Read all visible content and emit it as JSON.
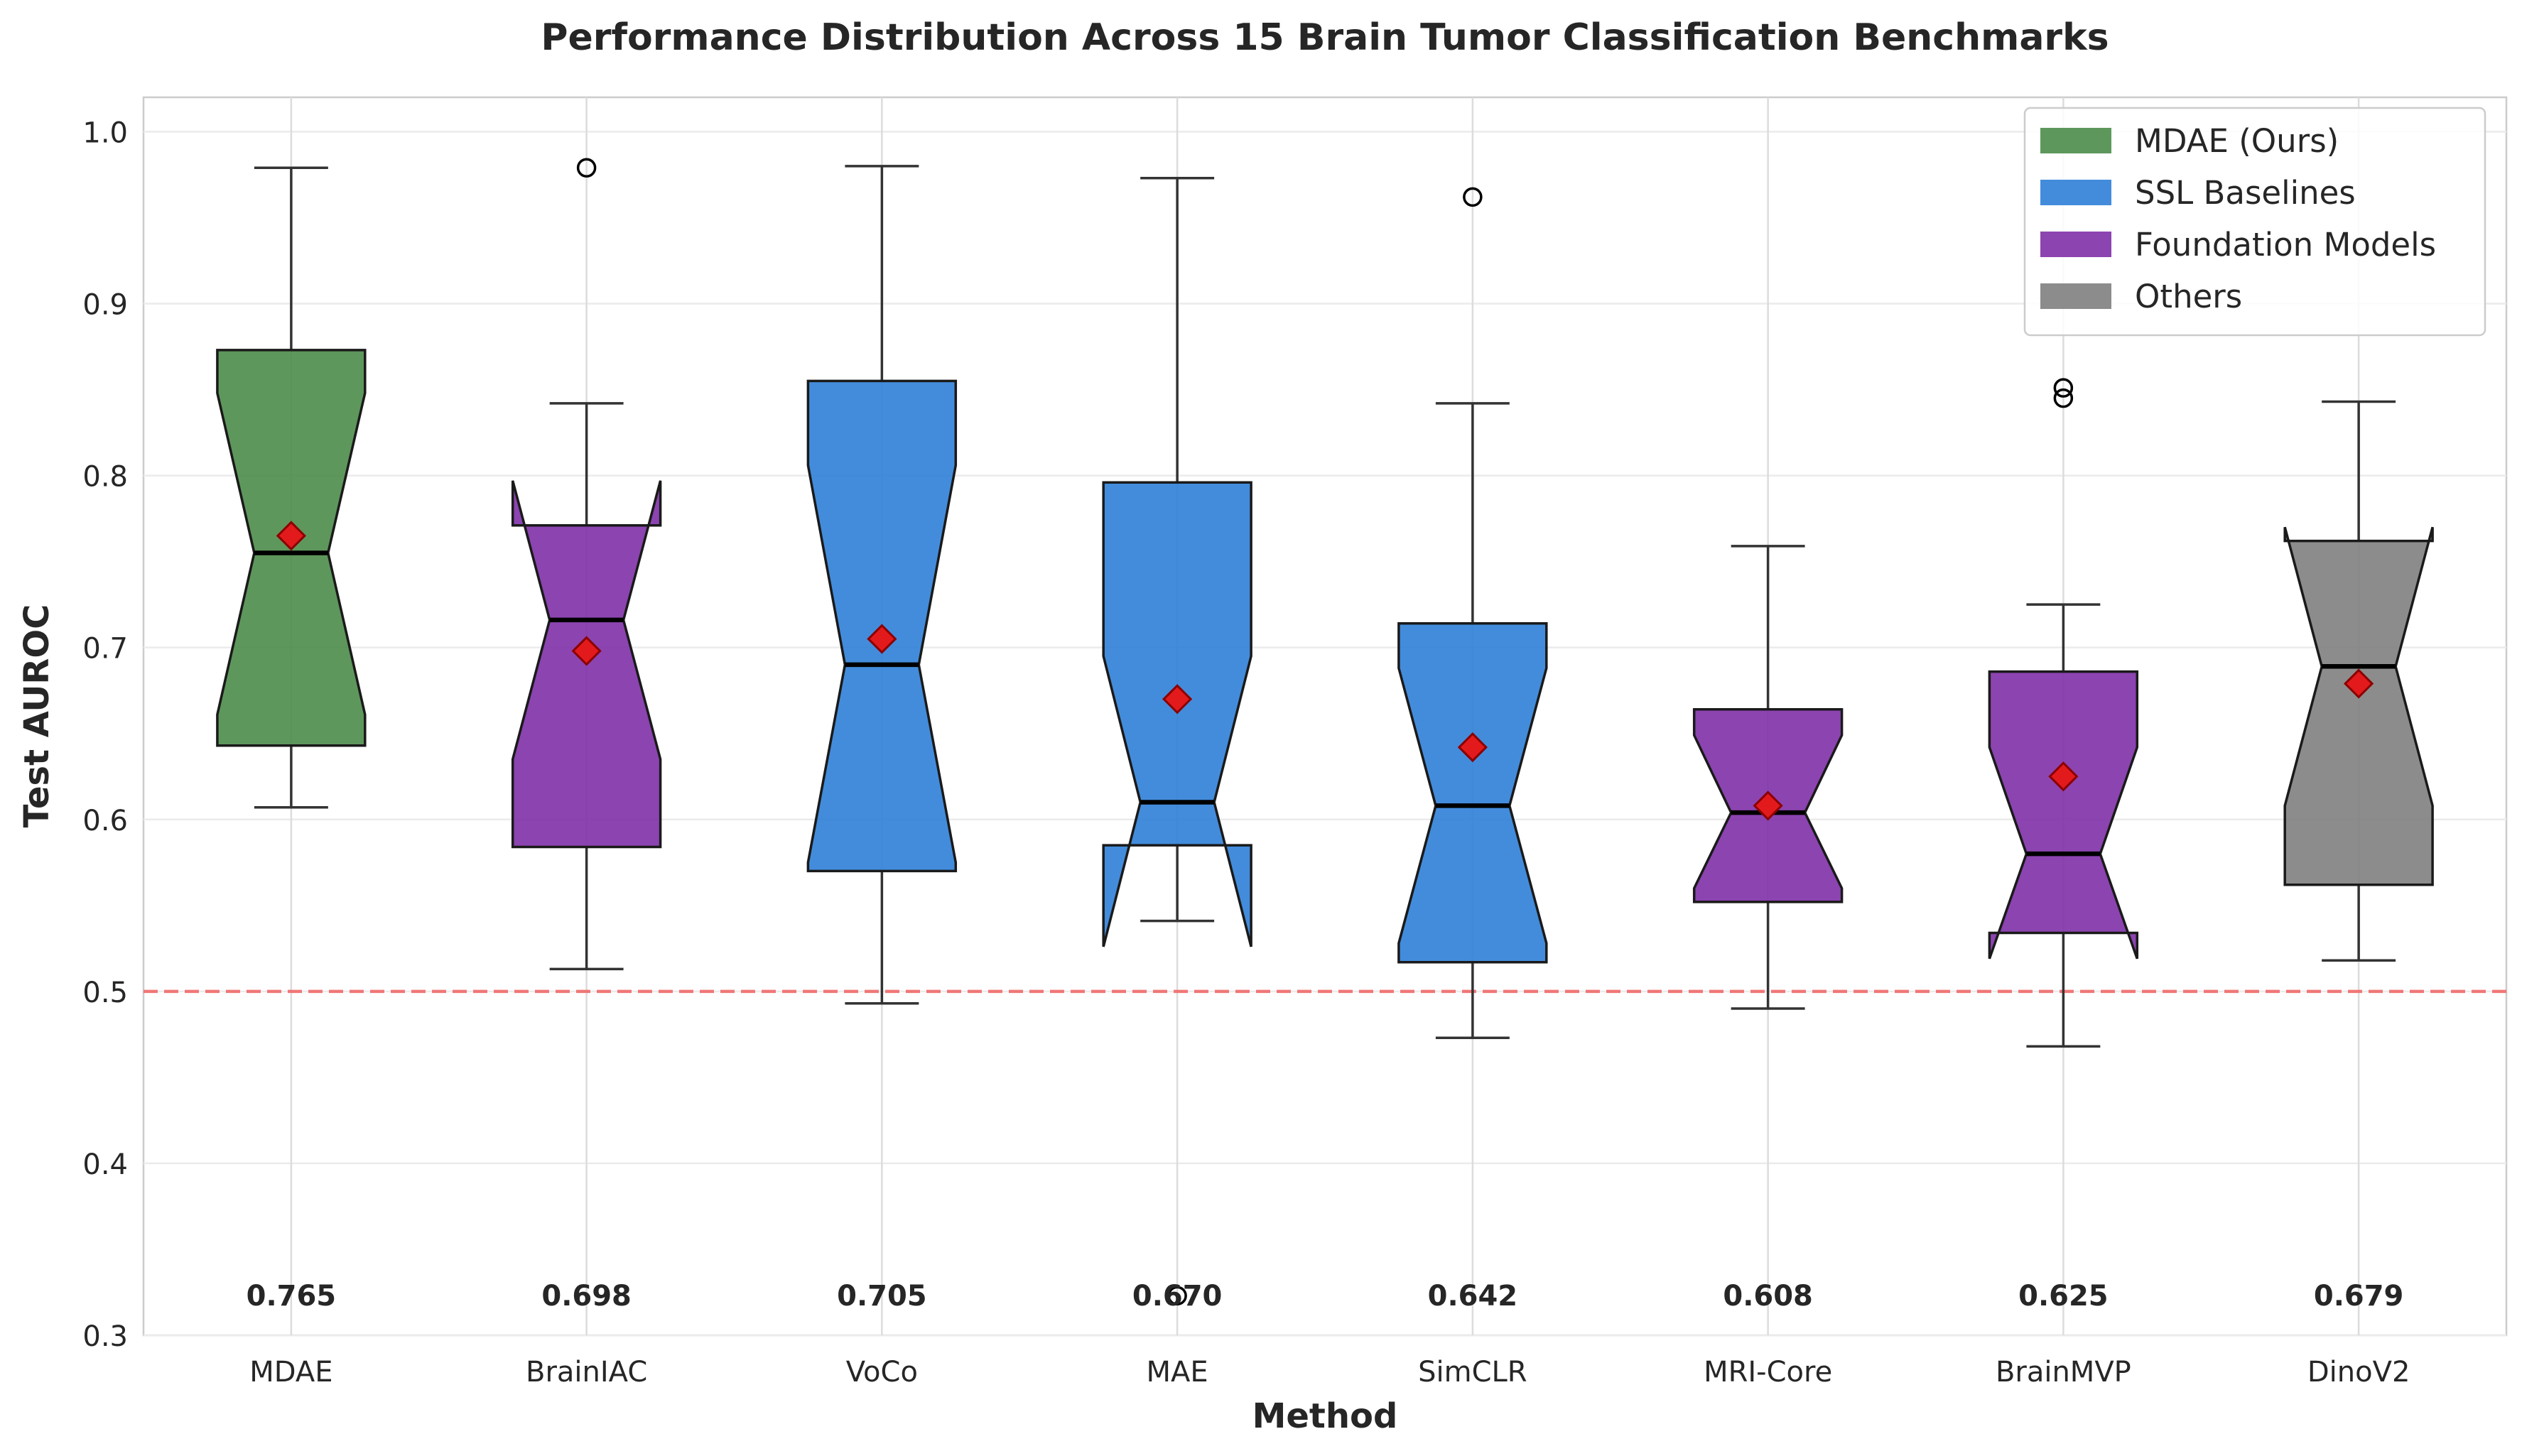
{
  "chart_data": {
    "type": "box",
    "title": "Performance Distribution Across 15 Brain Tumor Classification Benchmarks",
    "xlabel": "Method",
    "ylabel": "Test AUROC",
    "ylim": [
      0.3,
      1.02
    ],
    "yticks": [
      "0.3",
      "0.4",
      "0.5",
      "0.6",
      "0.7",
      "0.8",
      "0.9",
      "1.0"
    ],
    "grid": true,
    "notched": true,
    "reference_line": {
      "y": 0.5,
      "color": "#f06b6b",
      "style": "dashed"
    },
    "legend": {
      "position": "top-right",
      "entries": [
        {
          "label": "MDAE (Ours)",
          "color": "#4c8c4a"
        },
        {
          "label": "SSL Baselines",
          "color": "#2f80d8"
        },
        {
          "label": "Foundation Models",
          "color": "#8030a8"
        },
        {
          "label": "Others",
          "color": "#7f7f7f"
        }
      ]
    },
    "mean_marker_color": "#e31a1c",
    "boxes": [
      {
        "label": "MDAE",
        "group": "MDAE (Ours)",
        "color": "#4c8c4a",
        "whisker_low": 0.607,
        "q1": 0.643,
        "median": 0.755,
        "q3": 0.873,
        "whisker_high": 0.979,
        "notch_low": 0.661,
        "notch_high": 0.848,
        "mean": 0.765,
        "mean_label": "0.765",
        "outliers": []
      },
      {
        "label": "BrainIAC",
        "group": "Foundation Models",
        "color": "#8030a8",
        "whisker_low": 0.513,
        "q1": 0.584,
        "median": 0.716,
        "q3": 0.771,
        "whisker_high": 0.842,
        "notch_low": 0.635,
        "notch_high": 0.797,
        "mean": 0.698,
        "mean_label": "0.698",
        "outliers": [
          0.979
        ]
      },
      {
        "label": "VoCo",
        "group": "SSL Baselines",
        "color": "#2f80d8",
        "whisker_low": 0.493,
        "q1": 0.57,
        "median": 0.69,
        "q3": 0.855,
        "whisker_high": 0.98,
        "notch_low": 0.575,
        "notch_high": 0.806,
        "mean": 0.705,
        "mean_label": "0.705",
        "outliers": []
      },
      {
        "label": "MAE",
        "group": "SSL Baselines",
        "color": "#2f80d8",
        "whisker_low": 0.541,
        "q1": 0.585,
        "median": 0.61,
        "q3": 0.796,
        "whisker_high": 0.973,
        "notch_low": 0.526,
        "notch_high": 0.695,
        "mean": 0.67,
        "mean_label": "0.670",
        "outliers": [
          0.323
        ]
      },
      {
        "label": "SimCLR",
        "group": "SSL Baselines",
        "color": "#2f80d8",
        "whisker_low": 0.473,
        "q1": 0.517,
        "median": 0.608,
        "q3": 0.714,
        "whisker_high": 0.842,
        "notch_low": 0.528,
        "notch_high": 0.688,
        "mean": 0.642,
        "mean_label": "0.642",
        "outliers": [
          0.962
        ]
      },
      {
        "label": "MRI-Core",
        "group": "Foundation Models",
        "color": "#8030a8",
        "whisker_low": 0.49,
        "q1": 0.552,
        "median": 0.604,
        "q3": 0.664,
        "whisker_high": 0.759,
        "notch_low": 0.56,
        "notch_high": 0.649,
        "mean": 0.608,
        "mean_label": "0.608",
        "outliers": []
      },
      {
        "label": "BrainMVP",
        "group": "Foundation Models",
        "color": "#8030a8",
        "whisker_low": 0.468,
        "q1": 0.534,
        "median": 0.58,
        "q3": 0.686,
        "whisker_high": 0.725,
        "notch_low": 0.519,
        "notch_high": 0.642,
        "mean": 0.625,
        "mean_label": "0.625",
        "outliers": [
          0.845,
          0.851
        ]
      },
      {
        "label": "DinoV2",
        "group": "Others",
        "color": "#7f7f7f",
        "whisker_low": 0.518,
        "q1": 0.562,
        "median": 0.689,
        "q3": 0.762,
        "whisker_high": 0.843,
        "notch_low": 0.608,
        "notch_high": 0.77,
        "mean": 0.679,
        "mean_label": "0.679",
        "outliers": []
      }
    ]
  }
}
